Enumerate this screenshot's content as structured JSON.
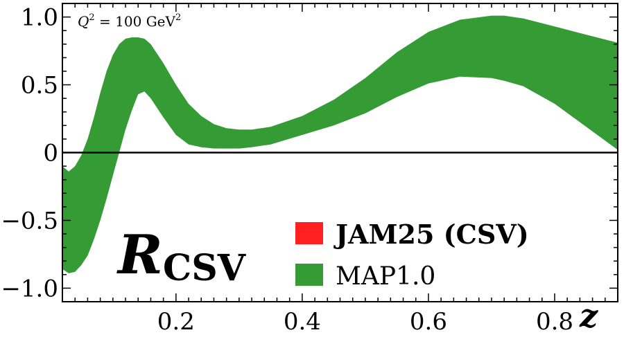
{
  "chart_data": {
    "type": "area",
    "xlim": [
      0.02,
      0.9
    ],
    "ylim": [
      -1.1,
      1.1
    ],
    "xticks": [
      0.2,
      0.4,
      0.6,
      0.8
    ],
    "xtick_labels": [
      "0.2",
      "0.4",
      "0.6",
      "0.8"
    ],
    "yticks": [
      -1.0,
      -0.5,
      0,
      0.5,
      1.0
    ],
    "ytick_labels": [
      "−1.0",
      "−0.5",
      "0",
      "0.5",
      "1.0"
    ],
    "xlabel": "z",
    "ylabel_main": "R",
    "ylabel_sub": "CSV",
    "annotation": {
      "prefix": "Q",
      "sup1": "2",
      "middle": " = 100 GeV",
      "sup2": "2"
    },
    "legend": [
      {
        "label": "JAM25 (CSV)",
        "color": "#ff2020",
        "bold": true
      },
      {
        "label": "MAP1.0",
        "color": "#359b35",
        "bold": false
      }
    ],
    "zero_line": true,
    "series": [
      {
        "name": "MAP1.0",
        "color": "#359b35",
        "x": [
          0.02,
          0.03,
          0.04,
          0.05,
          0.06,
          0.07,
          0.08,
          0.09,
          0.1,
          0.11,
          0.12,
          0.13,
          0.14,
          0.15,
          0.16,
          0.18,
          0.2,
          0.22,
          0.24,
          0.26,
          0.28,
          0.3,
          0.32,
          0.35,
          0.4,
          0.45,
          0.5,
          0.55,
          0.6,
          0.65,
          0.7,
          0.72,
          0.75,
          0.8,
          0.85,
          0.9
        ],
        "upper": [
          -0.1,
          -0.14,
          -0.1,
          -0.02,
          0.1,
          0.26,
          0.44,
          0.6,
          0.72,
          0.8,
          0.84,
          0.85,
          0.85,
          0.84,
          0.8,
          0.66,
          0.5,
          0.36,
          0.27,
          0.21,
          0.18,
          0.17,
          0.17,
          0.19,
          0.27,
          0.39,
          0.55,
          0.74,
          0.89,
          0.98,
          1.01,
          1.01,
          0.99,
          0.93,
          0.87,
          0.81
        ],
        "lower": [
          -0.86,
          -0.89,
          -0.88,
          -0.83,
          -0.76,
          -0.64,
          -0.5,
          -0.34,
          -0.17,
          0.0,
          0.17,
          0.31,
          0.43,
          0.45,
          0.4,
          0.26,
          0.13,
          0.06,
          0.04,
          0.03,
          0.03,
          0.03,
          0.04,
          0.06,
          0.13,
          0.2,
          0.29,
          0.41,
          0.51,
          0.56,
          0.55,
          0.53,
          0.49,
          0.36,
          0.19,
          0.02
        ]
      }
    ]
  }
}
